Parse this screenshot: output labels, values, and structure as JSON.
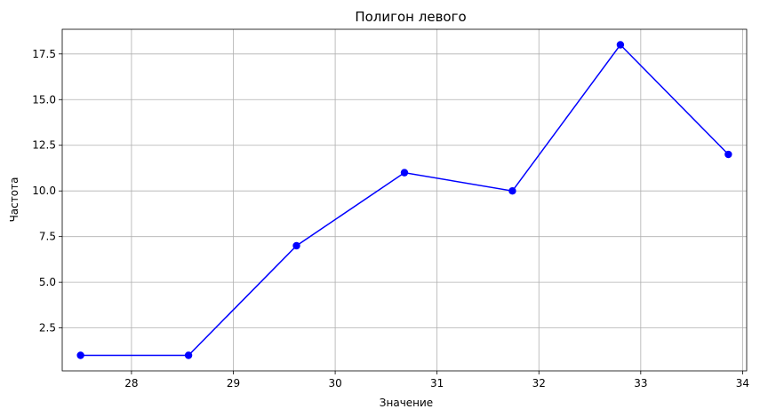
{
  "chart_data": {
    "type": "line",
    "title": "Полигон левого",
    "xlabel": "Значение",
    "ylabel": "Частота",
    "x": [
      27.5,
      28.56,
      29.62,
      30.68,
      31.74,
      32.8,
      33.86
    ],
    "series": [
      {
        "values": [
          1,
          1,
          7,
          11,
          10,
          18,
          12
        ],
        "color": "#0000ff"
      }
    ],
    "xlim": [
      27.32,
      34.04
    ],
    "ylim": [
      0.15,
      18.85
    ],
    "xticks": [
      28,
      29,
      30,
      31,
      32,
      33,
      34
    ],
    "xtick_labels": [
      "28",
      "29",
      "30",
      "31",
      "32",
      "33",
      "34"
    ],
    "yticks": [
      2.5,
      5.0,
      7.5,
      10.0,
      12.5,
      15.0,
      17.5
    ],
    "ytick_labels": [
      "2.5",
      "5.0",
      "7.5",
      "10.0",
      "12.5",
      "15.0",
      "17.5"
    ],
    "grid": true,
    "marker": "circle"
  }
}
